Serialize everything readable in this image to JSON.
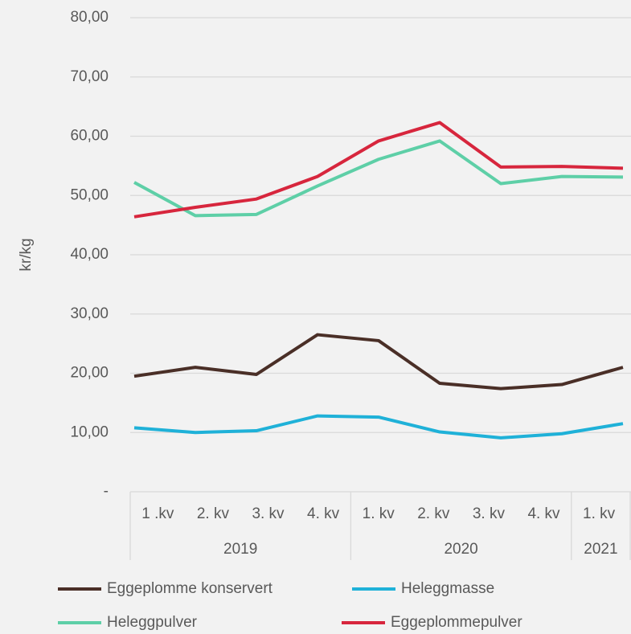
{
  "chart_data": {
    "type": "line",
    "y_label": "kr/kg",
    "category_groups": [
      {
        "label": "2019",
        "categories": [
          "1 .kv",
          "2. kv",
          "3. kv",
          "4. kv"
        ]
      },
      {
        "label": "2020",
        "categories": [
          "1. kv",
          "2. kv",
          "3. kv",
          "4. kv"
        ]
      },
      {
        "label": "2021",
        "categories": [
          "1. kv"
        ]
      }
    ],
    "series": [
      {
        "name": "Eggeplomme konservert",
        "color": "#4a2f27",
        "values": [
          19.5,
          21,
          19.8,
          26.5,
          25.5,
          18.3,
          17.4,
          18.1,
          21
        ]
      },
      {
        "name": "Heleggmasse",
        "color": "#1fb1d8",
        "values": [
          10.8,
          10,
          10.3,
          12.8,
          12.6,
          10.1,
          9.1,
          9.8,
          11.5
        ]
      },
      {
        "name": "Heleggpulver",
        "color": "#5ecfa7",
        "values": [
          52.2,
          46.6,
          46.8,
          51.6,
          56.1,
          59.2,
          52,
          53.2,
          53.1
        ]
      },
      {
        "name": "Eggeplommepulver",
        "color": "#d7263d",
        "values": [
          46.4,
          48,
          49.4,
          53.2,
          59.2,
          62.3,
          54.8,
          54.9,
          54.6
        ]
      }
    ],
    "ylim": [
      0,
      80
    ],
    "yticks": [
      {
        "value": 0,
        "label": "-"
      },
      {
        "value": 10,
        "label": "10,00"
      },
      {
        "value": 20,
        "label": "20,00"
      },
      {
        "value": 30,
        "label": "30,00"
      },
      {
        "value": 40,
        "label": "40,00"
      },
      {
        "value": 50,
        "label": "50,00"
      },
      {
        "value": 60,
        "label": "60,00"
      },
      {
        "value": 70,
        "label": "70,00"
      },
      {
        "value": 80,
        "label": "80,00"
      }
    ],
    "grid": true
  }
}
